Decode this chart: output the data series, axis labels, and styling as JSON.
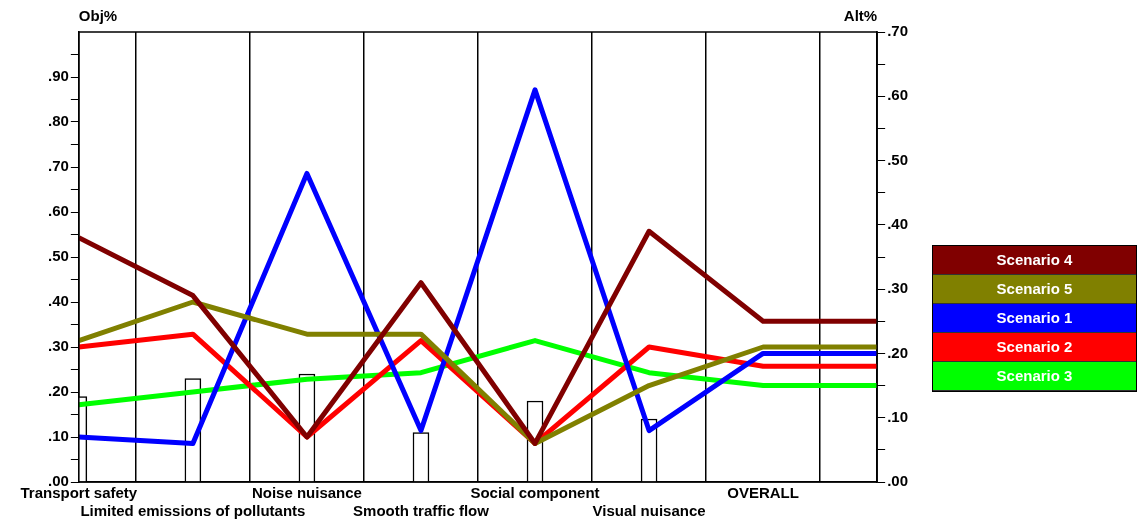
{
  "chart_data": {
    "type": "line",
    "categories": [
      "Transport safety",
      "Limited emissions of pollutants",
      "Noise nuisance",
      "Smooth traffic flow",
      "Social component",
      "Visual nuisance",
      "OVERALL",
      null
    ],
    "ylabel": "Obj%",
    "y2label": "Alt%",
    "ylim": [
      0,
      1
    ],
    "yticks": [
      {
        "value": 0,
        "label": ".00"
      },
      {
        "value": 0.05,
        "label": null
      },
      {
        "value": 0.1,
        "label": ".10"
      },
      {
        "value": 0.15,
        "label": null
      },
      {
        "value": 0.2,
        "label": ".20"
      },
      {
        "value": 0.25,
        "label": null
      },
      {
        "value": 0.3,
        "label": ".30"
      },
      {
        "value": 0.35,
        "label": null
      },
      {
        "value": 0.4,
        "label": ".40"
      },
      {
        "value": 0.45,
        "label": null
      },
      {
        "value": 0.5,
        "label": ".50"
      },
      {
        "value": 0.55,
        "label": null
      },
      {
        "value": 0.6,
        "label": ".60"
      },
      {
        "value": 0.65,
        "label": null
      },
      {
        "value": 0.7,
        "label": ".70"
      },
      {
        "value": 0.75,
        "label": null
      },
      {
        "value": 0.8,
        "label": ".80"
      },
      {
        "value": 0.85,
        "label": null
      },
      {
        "value": 0.9,
        "label": ".90"
      },
      {
        "value": 0.95,
        "label": null
      }
    ],
    "y2lim": [
      0,
      0.7
    ],
    "y2ticks": [
      {
        "value": 0,
        "label": ".00"
      },
      {
        "value": 0.05,
        "label": null
      },
      {
        "value": 0.1,
        "label": ".10"
      },
      {
        "value": 0.15,
        "label": null
      },
      {
        "value": 0.2,
        "label": ".20"
      },
      {
        "value": 0.25,
        "label": null
      },
      {
        "value": 0.3,
        "label": ".30"
      },
      {
        "value": 0.35,
        "label": null
      },
      {
        "value": 0.4,
        "label": ".40"
      },
      {
        "value": 0.45,
        "label": null
      },
      {
        "value": 0.5,
        "label": ".50"
      },
      {
        "value": 0.55,
        "label": null
      },
      {
        "value": 0.6,
        "label": ".60"
      },
      {
        "value": 0.65,
        "label": null
      },
      {
        "value": 0.7,
        "label": ".70"
      }
    ],
    "grid": "x",
    "legend": "right",
    "marker": "none",
    "line_style": "solid",
    "series": [
      {
        "type": "bar",
        "color": "#ffffff",
        "values": [
          0.19,
          0.23,
          0.24,
          0.11,
          0.18,
          0.14,
          null,
          null
        ]
      },
      {
        "name": "Scenario 4",
        "color": "#800000",
        "axis": "y2",
        "values": [
          0.38,
          0.29,
          0.07,
          0.31,
          0.06,
          0.39,
          0.25,
          0.25
        ]
      },
      {
        "name": "Scenario 5",
        "color": "#808000",
        "axis": "y2",
        "values": [
          0.22,
          0.28,
          0.23,
          0.23,
          0.06,
          0.15,
          0.21,
          0.21
        ]
      },
      {
        "name": "Scenario 1",
        "color": "#0000ff",
        "axis": "y2",
        "values": [
          0.07,
          0.06,
          0.48,
          0.08,
          0.61,
          0.08,
          0.2,
          0.2
        ]
      },
      {
        "name": "Scenario 2",
        "color": "#ff0000",
        "axis": "y2",
        "values": [
          0.21,
          0.23,
          0.07,
          0.22,
          0.06,
          0.21,
          0.18,
          0.18
        ]
      },
      {
        "name": "Scenario 3",
        "color": "#00ff00",
        "axis": "y2",
        "values": [
          0.12,
          0.14,
          0.16,
          0.17,
          0.22,
          0.17,
          0.15,
          0.15
        ]
      }
    ]
  }
}
